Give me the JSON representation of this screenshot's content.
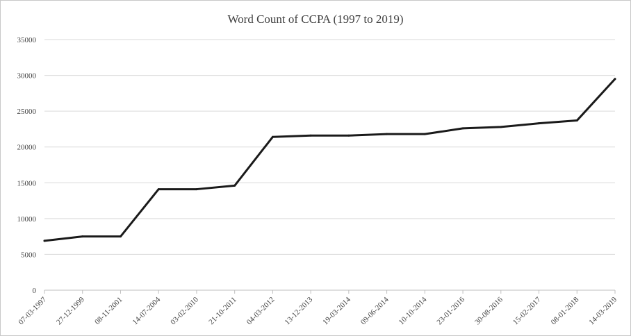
{
  "chart_data": {
    "type": "line",
    "title": "Word Count of CCPA (1997 to 2019)",
    "xlabel": "",
    "ylabel": "",
    "categories": [
      "07-03-1997",
      "27-12-1999",
      "08-11-2001",
      "14-07-2004",
      "03-02-2010",
      "21-10-2011",
      "04-03-2012",
      "13-12-2013",
      "19-03-2014",
      "09-06-2014",
      "10-10-2014",
      "23-01-2016",
      "30-08-2016",
      "15-02-2017",
      "08-01-2018",
      "14-03-2019"
    ],
    "series": [
      {
        "values": [
          6900,
          7500,
          7500,
          14100,
          14100,
          14600,
          21400,
          21600,
          21600,
          21800,
          21800,
          22600,
          22800,
          23300,
          23700,
          29500
        ]
      }
    ],
    "ylim": [
      0,
      35000
    ],
    "yticks": [
      0,
      5000,
      10000,
      15000,
      20000,
      25000,
      30000,
      35000
    ],
    "grid": true,
    "legend": "none",
    "colors": {
      "line": "#1a1a1a",
      "grid": "#d9d9d9",
      "axis": "#bfbfbf",
      "text": "#404040"
    }
  }
}
